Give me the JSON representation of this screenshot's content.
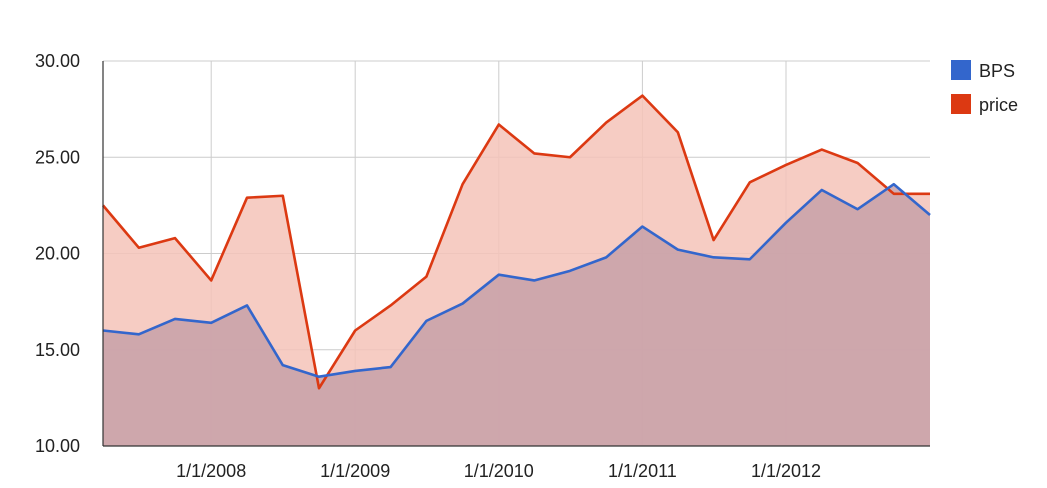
{
  "chart_data": {
    "type": "area",
    "x": [
      "2007-04-01",
      "2007-07-01",
      "2007-10-01",
      "2008-01-01",
      "2008-04-01",
      "2008-07-01",
      "2008-10-01",
      "2009-01-01",
      "2009-04-01",
      "2009-07-01",
      "2009-10-01",
      "2010-01-01",
      "2010-04-01",
      "2010-07-01",
      "2010-10-01",
      "2011-01-01",
      "2011-04-01",
      "2011-07-01",
      "2011-10-01",
      "2012-01-01",
      "2012-04-01",
      "2012-07-01",
      "2012-10-01",
      "2013-01-01"
    ],
    "series": [
      {
        "name": "BPS",
        "color": "#3366cc",
        "fill": "#c7a0a8",
        "values": [
          16.0,
          15.8,
          16.6,
          16.4,
          17.3,
          14.2,
          13.6,
          13.9,
          14.1,
          16.5,
          17.4,
          18.9,
          18.6,
          19.1,
          19.8,
          21.4,
          20.2,
          19.8,
          19.7,
          21.6,
          23.3,
          22.3,
          23.6,
          22.0
        ]
      },
      {
        "name": "price",
        "color": "#dc3912",
        "fill": "#f4c3b9",
        "values": [
          22.5,
          20.3,
          20.8,
          18.6,
          22.9,
          23.0,
          13.0,
          16.0,
          17.3,
          18.8,
          23.6,
          26.7,
          25.2,
          25.0,
          26.8,
          28.2,
          26.3,
          20.7,
          23.7,
          24.6,
          25.4,
          24.7,
          23.1,
          23.1
        ]
      }
    ],
    "ylim": [
      10,
      30
    ],
    "y_ticks": [
      "10.00",
      "15.00",
      "20.00",
      "25.00",
      "30.00"
    ],
    "x_ticks": [
      {
        "label": "1/1/2008",
        "date": "2008-01-01"
      },
      {
        "label": "1/1/2009",
        "date": "2009-01-01"
      },
      {
        "label": "1/1/2010",
        "date": "2010-01-01"
      },
      {
        "label": "1/1/2011",
        "date": "2011-01-01"
      },
      {
        "label": "1/1/2012",
        "date": "2012-01-01"
      }
    ],
    "xlim": [
      "2007-04-01",
      "2013-01-01"
    ],
    "grid": true,
    "legend_position": "right"
  }
}
